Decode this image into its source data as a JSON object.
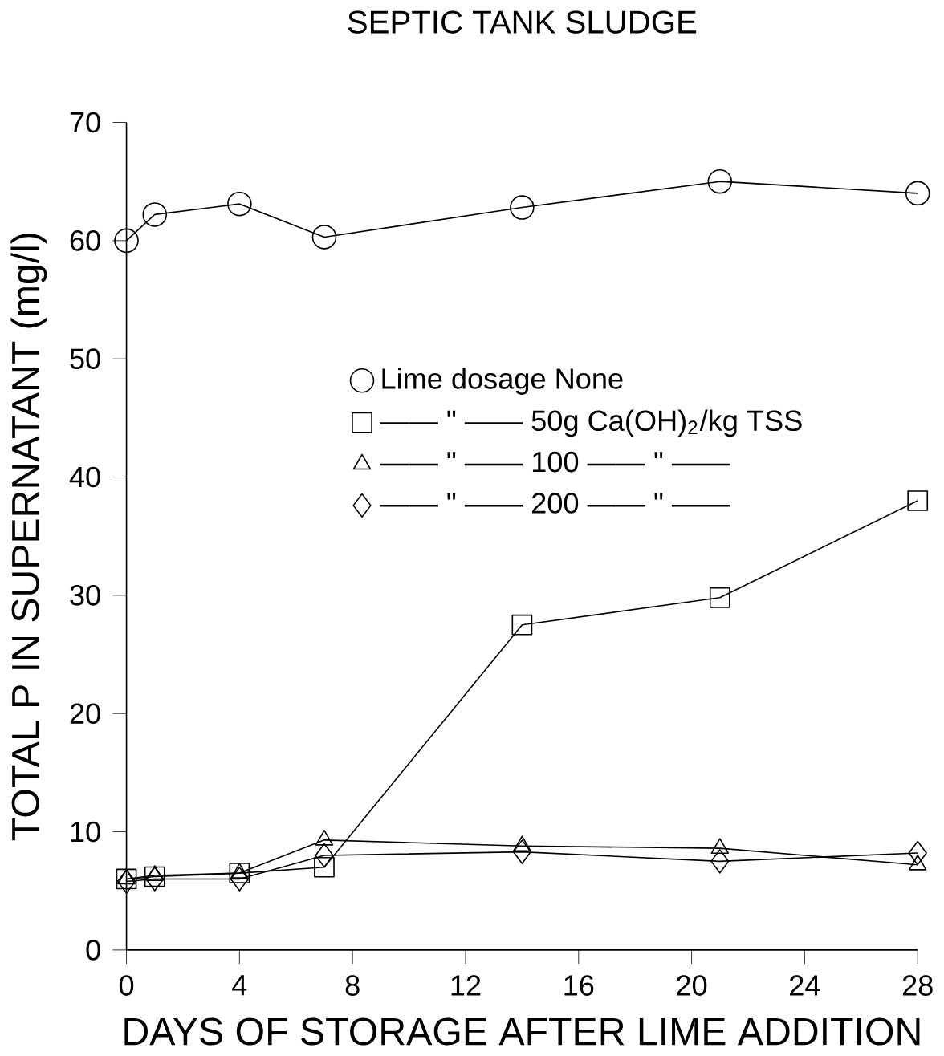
{
  "chart_data": {
    "type": "line",
    "title": "SEPTIC TANK SLUDGE",
    "xlabel": "DAYS OF STORAGE AFTER LIME ADDITION",
    "ylabel": "TOTAL P IN SUPERNATANT (mg/l)",
    "x": [
      0,
      1,
      4,
      7,
      14,
      21,
      28
    ],
    "series": [
      {
        "name": "Lime dosage  None",
        "color": "#000000",
        "marker": "circle",
        "values": [
          60,
          62.2,
          63.1,
          60.3,
          62.8,
          65.0,
          64.0
        ]
      },
      {
        "name": "—— \" ——   50g Ca(OH)$_{2}$/kg TSS",
        "color": "#000000",
        "marker": "square",
        "values": [
          6,
          6.2,
          6.5,
          7,
          27.5,
          29.8,
          38
        ]
      },
      {
        "name": "—— \" ——   100 —— \" ——",
        "color": "#000000",
        "marker": "triangle",
        "values": [
          6,
          6.3,
          6.5,
          9.3,
          8.8,
          8.6,
          7.2
        ]
      },
      {
        "name": "—— \" ——   200 —— \" ——",
        "color": "#000000",
        "marker": "diamond",
        "values": [
          5.8,
          6,
          6,
          8,
          8.3,
          7.5,
          8.2
        ]
      }
    ],
    "xlim": [
      0,
      28
    ],
    "ylim": [
      0,
      70
    ],
    "xticks": [
      0,
      4,
      8,
      12,
      16,
      20,
      24,
      28
    ],
    "yticks": [
      0,
      10,
      20,
      30,
      40,
      50,
      60,
      70
    ],
    "grid": false,
    "legend": "right",
    "line_style": "solid"
  }
}
